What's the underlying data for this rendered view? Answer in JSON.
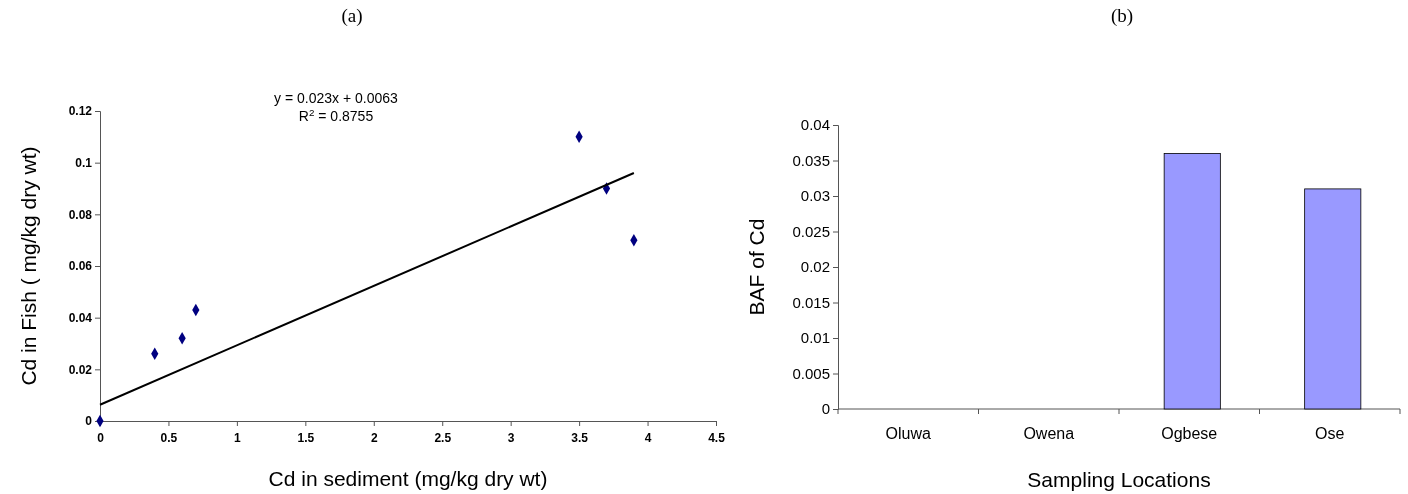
{
  "chart_data": [
    {
      "type": "scatter",
      "title": "(a)",
      "xlabel": "Cd in sediment (mg/kg dry wt)",
      "ylabel": "Cd in Fish ( mg/kg dry wt)",
      "annotations": [
        "y = 0.023x + 0.0063",
        "R$^{2}$ = 0.8755"
      ],
      "xlim": [
        0,
        4.5
      ],
      "xticks": [
        0,
        0.5,
        1,
        1.5,
        2,
        2.5,
        3,
        3.5,
        4,
        4.5
      ],
      "ylim": [
        0,
        0.12
      ],
      "yticks": [
        0,
        0.02,
        0.04,
        0.06,
        0.08,
        0.1,
        0.12
      ],
      "grid": false,
      "series": [
        {
          "type": "scatter",
          "marker": "diamond",
          "color": "#000080",
          "x": [
            0,
            0.4,
            0.6,
            0.7,
            3.5,
            3.7,
            3.9
          ],
          "values": [
            0,
            0.026,
            0.032,
            0.043,
            0.11,
            0.09,
            0.07
          ]
        },
        {
          "type": "line",
          "marker": "none",
          "color": "#000000",
          "line_style": "solid",
          "x": [
            0,
            3.9
          ],
          "values": [
            0.0063,
            0.096
          ]
        }
      ]
    },
    {
      "type": "bar",
      "title": "(b)",
      "xlabel": "Sampling Locations",
      "ylabel": "BAF of Cd",
      "categories": [
        "Oluwa",
        "Owena",
        "Ogbese",
        "Ose"
      ],
      "values": [
        0,
        0,
        0.036,
        0.031
      ],
      "color": "#9999ff",
      "ylim": [
        0,
        0.04
      ],
      "yticks": [
        0,
        0.005,
        0.01,
        0.015,
        0.02,
        0.025,
        0.03,
        0.035,
        0.04
      ],
      "grid": false
    }
  ]
}
